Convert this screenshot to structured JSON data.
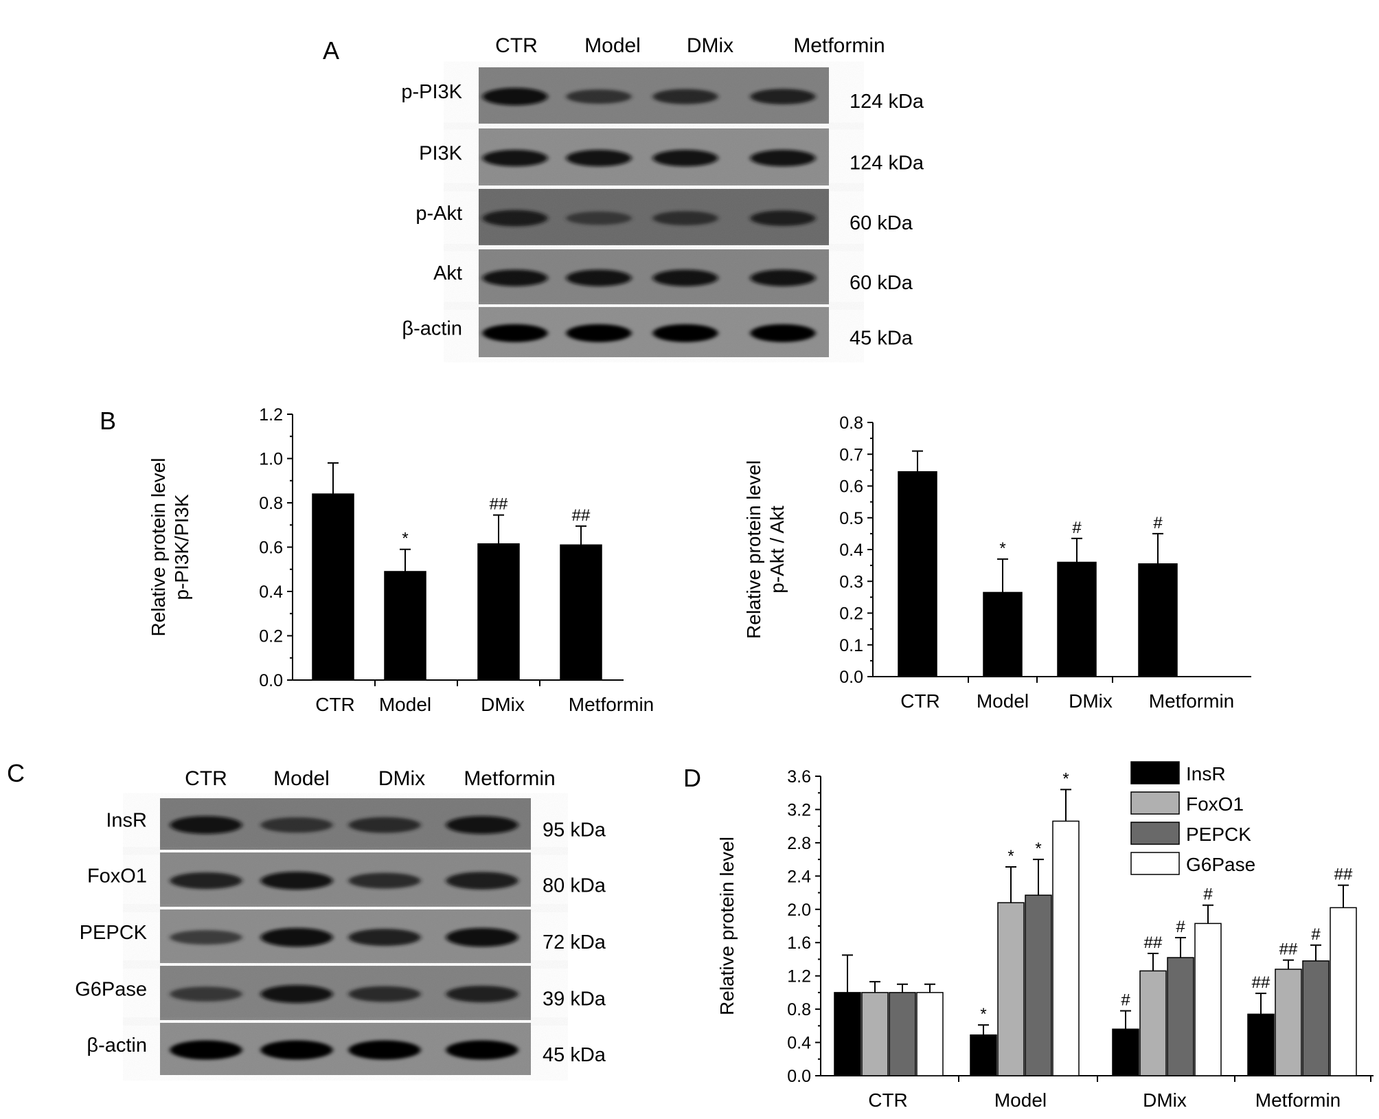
{
  "panels": {
    "A": "A",
    "B": "B",
    "C": "C",
    "D": "D"
  },
  "blot_A": {
    "lanes": [
      "CTR",
      "Model",
      "DMix",
      "Metformin"
    ],
    "rows": [
      {
        "label": "p-PI3K",
        "kda": "124 kDa",
        "intensity": [
          0.95,
          0.55,
          0.65,
          0.7
        ]
      },
      {
        "label": "PI3K",
        "kda": "124 kDa",
        "intensity": [
          0.85,
          0.85,
          0.85,
          0.85
        ]
      },
      {
        "label": "p-Akt",
        "kda": "60 kDa",
        "intensity": [
          0.8,
          0.45,
          0.55,
          0.7
        ]
      },
      {
        "label": "Akt",
        "kda": "60 kDa",
        "intensity": [
          0.85,
          0.85,
          0.85,
          0.85
        ]
      },
      {
        "label": "β-actin",
        "kda": "45 kDa",
        "intensity": [
          1.0,
          1.0,
          1.0,
          1.0
        ]
      }
    ]
  },
  "blot_C": {
    "lanes": [
      "CTR",
      "Model",
      "DMix",
      "Metformin"
    ],
    "rows": [
      {
        "label": "InsR",
        "kda": "95 kDa",
        "intensity": [
          0.85,
          0.55,
          0.6,
          0.85
        ]
      },
      {
        "label": "FoxO1",
        "kda": "80 kDa",
        "intensity": [
          0.7,
          0.85,
          0.6,
          0.8
        ]
      },
      {
        "label": "PEPCK",
        "kda": "72 kDa",
        "intensity": [
          0.45,
          0.95,
          0.75,
          0.95
        ]
      },
      {
        "label": "G6Pase",
        "kda": "39 kDa",
        "intensity": [
          0.5,
          0.85,
          0.6,
          0.7
        ]
      },
      {
        "label": "β-actin",
        "kda": "45 kDa",
        "intensity": [
          1.0,
          1.0,
          1.0,
          1.0
        ]
      }
    ]
  },
  "chart_data": [
    {
      "id": "B-left",
      "type": "bar",
      "categories": [
        "CTR",
        "Model",
        "DMix",
        "Metformin"
      ],
      "values": [
        0.84,
        0.49,
        0.615,
        0.61
      ],
      "errors": [
        0.14,
        0.1,
        0.13,
        0.085
      ],
      "annotations": [
        "",
        "*",
        "##",
        "##"
      ],
      "ylabel_lines": [
        "Relative protein level",
        "p-PI3K/PI3K"
      ],
      "ylim": [
        0,
        1.2
      ],
      "yticks": [
        "0.0",
        "0.2",
        "0.4",
        "0.6",
        "0.8",
        "1.0",
        "1.2"
      ],
      "bar_color": "#000000",
      "grid": false
    },
    {
      "id": "B-right",
      "type": "bar",
      "categories": [
        "CTR",
        "Model",
        "DMix",
        "Metformin"
      ],
      "values": [
        0.645,
        0.265,
        0.36,
        0.355
      ],
      "errors": [
        0.065,
        0.105,
        0.075,
        0.095
      ],
      "annotations": [
        "",
        "*",
        "#",
        "#"
      ],
      "ylabel_lines": [
        "Relative protein level",
        "p-Akt / Akt"
      ],
      "ylim": [
        0,
        0.8
      ],
      "yticks": [
        "0.0",
        "0.1",
        "0.2",
        "0.3",
        "0.4",
        "0.5",
        "0.6",
        "0.7",
        "0.8"
      ],
      "bar_color": "#000000",
      "grid": false
    },
    {
      "id": "D",
      "type": "bar",
      "categories": [
        "CTR",
        "Model",
        "DMix",
        "Metformin"
      ],
      "ylabel_lines": [
        "Relative protein level"
      ],
      "ylim": [
        0,
        3.6
      ],
      "yticks": [
        "0.0",
        "0.4",
        "0.8",
        "1.2",
        "1.6",
        "2.0",
        "2.4",
        "2.8",
        "3.2",
        "3.6"
      ],
      "legend_position": "top-right",
      "grid": false,
      "series": [
        {
          "name": "InsR",
          "color": "#000000",
          "values": [
            1.0,
            0.49,
            0.56,
            0.74
          ],
          "errors": [
            0.45,
            0.12,
            0.22,
            0.25
          ],
          "annotations": [
            "",
            "*",
            "#",
            "##"
          ]
        },
        {
          "name": "FoxO1",
          "color": "#b0b0b0",
          "values": [
            1.0,
            2.08,
            1.26,
            1.28
          ],
          "errors": [
            0.13,
            0.43,
            0.21,
            0.11
          ],
          "annotations": [
            "",
            "*",
            "##",
            "##"
          ]
        },
        {
          "name": "PEPCK",
          "color": "#696969",
          "values": [
            1.0,
            2.17,
            1.42,
            1.38
          ],
          "errors": [
            0.1,
            0.43,
            0.24,
            0.19
          ],
          "annotations": [
            "",
            "*",
            "#",
            "#"
          ]
        },
        {
          "name": "G6Pase",
          "color": "#ffffff",
          "values": [
            1.0,
            3.06,
            1.83,
            2.02
          ],
          "errors": [
            0.1,
            0.38,
            0.22,
            0.27
          ],
          "annotations": [
            "",
            "*",
            "#",
            "##"
          ]
        }
      ]
    }
  ]
}
